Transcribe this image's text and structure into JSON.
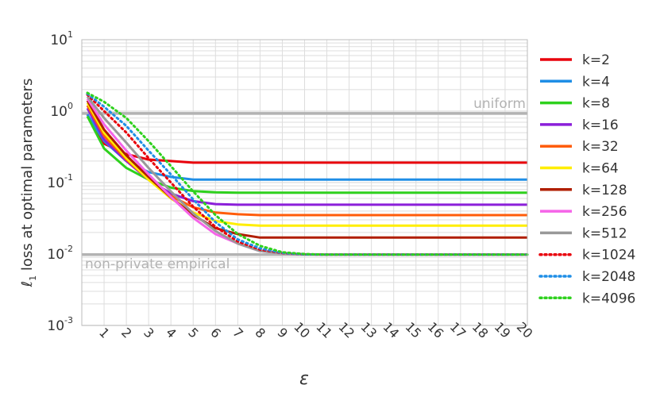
{
  "chart_data": {
    "type": "line",
    "xlabel": "ε",
    "ylabel": "ℓ1 loss at optimal parameters",
    "ylabel_prefix": "ℓ",
    "ylabel_sub": "1",
    "ylabel_rest": " loss at optimal parameters",
    "xlim": [
      0,
      20
    ],
    "ylim": [
      0.001,
      10
    ],
    "yscale": "log",
    "grid": true,
    "legend_position": "right",
    "x_ticks": [
      "1",
      "2",
      "3",
      "4",
      "5",
      "6",
      "7",
      "8",
      "9",
      "10",
      "11",
      "12",
      "13",
      "14",
      "15",
      "16",
      "17",
      "18",
      "19",
      "20"
    ],
    "y_ticks": [
      {
        "base": "10",
        "exp": "1",
        "value": 10
      },
      {
        "base": "10",
        "exp": "0",
        "value": 1
      },
      {
        "base": "10",
        "exp": "-1",
        "value": 0.1
      },
      {
        "base": "10",
        "exp": "-2",
        "value": 0.01
      },
      {
        "base": "10",
        "exp": "-3",
        "value": 0.001
      }
    ],
    "reference_lines": [
      {
        "label": "uniform",
        "value": 0.93,
        "color": "#b3b3b3"
      },
      {
        "label": "non-private empirical",
        "value": 0.0098,
        "color": "#b3b3b3"
      }
    ],
    "x": [
      0.25,
      1,
      2,
      3,
      4,
      5,
      6,
      7,
      8,
      9,
      10,
      11,
      12,
      13,
      14,
      15,
      16,
      17,
      18,
      19,
      20
    ],
    "series": [
      {
        "name": "k=2",
        "color": "#e8000b",
        "dashed": false,
        "values": [
          0.9,
          0.35,
          0.25,
          0.21,
          0.2,
          0.19,
          0.19,
          0.19,
          0.19,
          0.19,
          0.19,
          0.19,
          0.19,
          0.19,
          0.19,
          0.19,
          0.19,
          0.19,
          0.19,
          0.19,
          0.19
        ]
      },
      {
        "name": "k=4",
        "color": "#1f8ee6",
        "dashed": false,
        "values": [
          0.9,
          0.38,
          0.2,
          0.14,
          0.12,
          0.11,
          0.11,
          0.11,
          0.11,
          0.11,
          0.11,
          0.11,
          0.11,
          0.11,
          0.11,
          0.11,
          0.11,
          0.11,
          0.11,
          0.11,
          0.11
        ]
      },
      {
        "name": "k=8",
        "color": "#2ed11d",
        "dashed": false,
        "values": [
          0.85,
          0.3,
          0.16,
          0.11,
          0.085,
          0.076,
          0.073,
          0.072,
          0.072,
          0.072,
          0.072,
          0.072,
          0.072,
          0.072,
          0.072,
          0.072,
          0.072,
          0.072,
          0.072,
          0.072,
          0.072
        ]
      },
      {
        "name": "k=16",
        "color": "#8b1fd9",
        "dashed": false,
        "values": [
          1.1,
          0.4,
          0.2,
          0.11,
          0.07,
          0.055,
          0.05,
          0.049,
          0.049,
          0.049,
          0.049,
          0.049,
          0.049,
          0.049,
          0.049,
          0.049,
          0.049,
          0.049,
          0.049,
          0.049,
          0.049
        ]
      },
      {
        "name": "k=32",
        "color": "#ff5c0a",
        "dashed": false,
        "values": [
          1.2,
          0.45,
          0.21,
          0.11,
          0.065,
          0.045,
          0.038,
          0.036,
          0.035,
          0.035,
          0.035,
          0.035,
          0.035,
          0.035,
          0.035,
          0.035,
          0.035,
          0.035,
          0.035,
          0.035,
          0.035
        ]
      },
      {
        "name": "k=64",
        "color": "#ffee00",
        "dashed": false,
        "values": [
          1.3,
          0.5,
          0.22,
          0.11,
          0.06,
          0.038,
          0.029,
          0.026,
          0.025,
          0.025,
          0.025,
          0.025,
          0.025,
          0.025,
          0.025,
          0.025,
          0.025,
          0.025,
          0.025,
          0.025,
          0.025
        ]
      },
      {
        "name": "k=128",
        "color": "#b01e00",
        "dashed": false,
        "values": [
          1.4,
          0.55,
          0.24,
          0.12,
          0.062,
          0.035,
          0.023,
          0.019,
          0.017,
          0.017,
          0.017,
          0.017,
          0.017,
          0.017,
          0.017,
          0.017,
          0.017,
          0.017,
          0.017,
          0.017,
          0.017
        ]
      },
      {
        "name": "k=256",
        "color": "#f564e8",
        "dashed": false,
        "values": [
          1.5,
          0.65,
          0.28,
          0.13,
          0.063,
          0.032,
          0.019,
          0.014,
          0.011,
          0.0102,
          0.0099,
          0.0098,
          0.0098,
          0.0098,
          0.0098,
          0.0098,
          0.0098,
          0.0098,
          0.0098,
          0.0098,
          0.0098
        ]
      },
      {
        "name": "k=512",
        "color": "#999999",
        "dashed": false,
        "values": [
          1.6,
          0.8,
          0.36,
          0.16,
          0.075,
          0.037,
          0.021,
          0.014,
          0.011,
          0.0102,
          0.0099,
          0.0098,
          0.0098,
          0.0098,
          0.0098,
          0.0098,
          0.0098,
          0.0098,
          0.0098,
          0.0098,
          0.0098
        ]
      },
      {
        "name": "k=1024",
        "color": "#e8000b",
        "dashed": true,
        "values": [
          1.7,
          1.0,
          0.5,
          0.22,
          0.1,
          0.046,
          0.024,
          0.015,
          0.0115,
          0.0103,
          0.0099,
          0.0098,
          0.0098,
          0.0098,
          0.0098,
          0.0098,
          0.0098,
          0.0098,
          0.0098,
          0.0098,
          0.0098
        ]
      },
      {
        "name": "k=2048",
        "color": "#1f8ee6",
        "dashed": true,
        "values": [
          1.75,
          1.15,
          0.62,
          0.28,
          0.13,
          0.058,
          0.028,
          0.016,
          0.012,
          0.0104,
          0.0099,
          0.0098,
          0.0098,
          0.0098,
          0.0098,
          0.0098,
          0.0098,
          0.0098,
          0.0098,
          0.0098,
          0.0098
        ]
      },
      {
        "name": "k=4096",
        "color": "#2ed11d",
        "dashed": true,
        "values": [
          1.8,
          1.35,
          0.8,
          0.38,
          0.17,
          0.075,
          0.035,
          0.019,
          0.013,
          0.0106,
          0.01,
          0.0098,
          0.0098,
          0.0098,
          0.0098,
          0.0098,
          0.0098,
          0.0098,
          0.0098,
          0.0098,
          0.0098
        ]
      }
    ]
  }
}
